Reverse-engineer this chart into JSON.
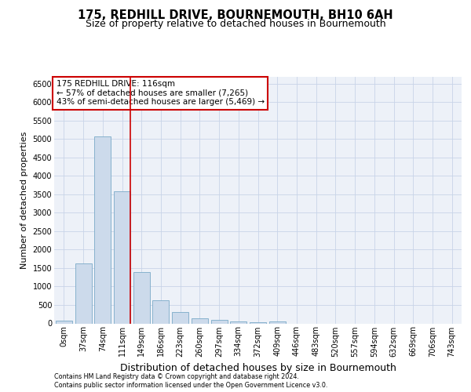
{
  "title": "175, REDHILL DRIVE, BOURNEMOUTH, BH10 6AH",
  "subtitle": "Size of property relative to detached houses in Bournemouth",
  "xlabel": "Distribution of detached houses by size in Bournemouth",
  "ylabel": "Number of detached properties",
  "footnote1": "Contains HM Land Registry data © Crown copyright and database right 2024.",
  "footnote2": "Contains public sector information licensed under the Open Government Licence v3.0.",
  "annotation_line1": "175 REDHILL DRIVE: 116sqm",
  "annotation_line2": "← 57% of detached houses are smaller (7,265)",
  "annotation_line3": "43% of semi-detached houses are larger (5,469) →",
  "bar_labels": [
    "0sqm",
    "37sqm",
    "74sqm",
    "111sqm",
    "149sqm",
    "186sqm",
    "223sqm",
    "260sqm",
    "297sqm",
    "334sqm",
    "372sqm",
    "409sqm",
    "446sqm",
    "483sqm",
    "520sqm",
    "557sqm",
    "594sqm",
    "632sqm",
    "669sqm",
    "706sqm",
    "743sqm"
  ],
  "bar_values": [
    70,
    1620,
    5080,
    3580,
    1400,
    620,
    300,
    140,
    90,
    50,
    30,
    60,
    0,
    0,
    0,
    0,
    0,
    0,
    0,
    0,
    0
  ],
  "bar_color": "#ccdaeb",
  "bar_edge_color": "#7aaac8",
  "annotation_box_edge_color": "#cc0000",
  "vline_color": "#cc0000",
  "vline_x_index": 3,
  "ylim": [
    0,
    6700
  ],
  "yticks": [
    0,
    500,
    1000,
    1500,
    2000,
    2500,
    3000,
    3500,
    4000,
    4500,
    5000,
    5500,
    6000,
    6500
  ],
  "grid_color": "#c8d4e8",
  "bg_color": "#edf1f8",
  "title_fontsize": 10.5,
  "subtitle_fontsize": 9,
  "ylabel_fontsize": 8,
  "xlabel_fontsize": 9,
  "tick_fontsize": 7,
  "annotation_fontsize": 7.5,
  "footnote_fontsize": 5.8
}
